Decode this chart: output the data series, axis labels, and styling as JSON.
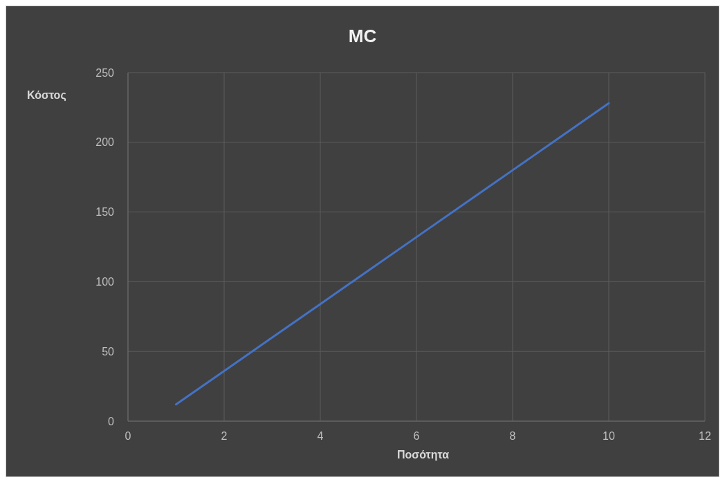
{
  "chart_data": {
    "type": "line",
    "title": "MC",
    "xlabel": "Ποσότητα",
    "ylabel": "Κόστος",
    "x": [
      1,
      2,
      3,
      4,
      5,
      6,
      7,
      8,
      9,
      10
    ],
    "series": [
      {
        "color": "#4472c4",
        "values": [
          12,
          36,
          60,
          84,
          108,
          132,
          156,
          180,
          204,
          228
        ]
      }
    ],
    "xlim": [
      0,
      12
    ],
    "xticks": [
      0,
      2,
      4,
      6,
      8,
      10,
      12
    ],
    "ylim": [
      0,
      250
    ],
    "yticks": [
      0,
      50,
      100,
      150,
      200,
      250
    ],
    "grid": true,
    "legend": false,
    "marker": "none",
    "line_style": "solid"
  }
}
